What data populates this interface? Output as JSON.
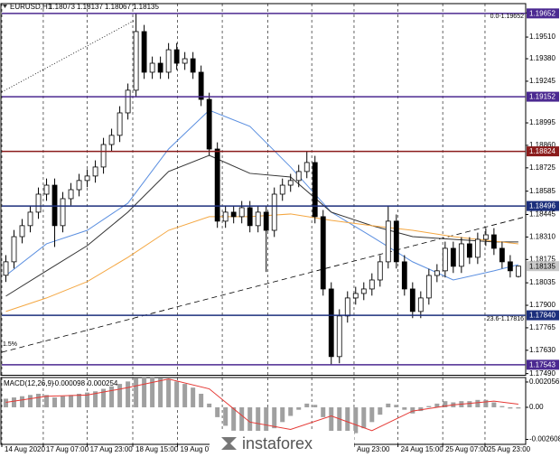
{
  "chart_data": {
    "type": "candlestick",
    "symbol": "EURUSD,H1",
    "open": [
      1.1808,
      1.18161,
      1.18312,
      1.18378,
      1.18459,
      1.18567,
      1.18621,
      1.18378,
      1.1854,
      1.18594,
      1.18649,
      1.18676,
      1.1873,
      1.18865,
      1.1892,
      1.19055,
      1.19191,
      1.19543,
      1.19299,
      1.19353,
      1.19299,
      1.19434,
      1.19353,
      1.1938,
      1.19299,
      1.19136,
      1.18838,
      1.18405,
      1.18459,
      1.18432,
      1.18486,
      1.18378,
      1.18459,
      1.1835,
      1.18567,
      1.18621,
      1.18649,
      1.18703,
      1.18757,
      1.18432,
      1.17998,
      1.17592,
      1.17836,
      1.17944,
      1.17971,
      1.17998,
      1.18052,
      1.18161,
      1.18405,
      1.18161,
      1.17998,
      1.17863,
      1.17944,
      1.18079,
      1.18107,
      1.18242,
      1.18134,
      1.18269,
      1.18188,
      1.18296,
      1.18323,
      1.18242,
      1.18161,
      1.18073
    ],
    "high": [
      1.18201,
      1.18352,
      1.18418,
      1.18499,
      1.18607,
      1.18661,
      1.18661,
      1.1858,
      1.18634,
      1.18689,
      1.18716,
      1.1877,
      1.18905,
      1.1896,
      1.19095,
      1.19231,
      1.19652,
      1.19583,
      1.19393,
      1.19393,
      1.19474,
      1.19474,
      1.1942,
      1.1942,
      1.19339,
      1.19176,
      1.18878,
      1.18499,
      1.18499,
      1.18526,
      1.18526,
      1.18499,
      1.18499,
      1.18607,
      1.18661,
      1.18689,
      1.18743,
      1.18824,
      1.18797,
      1.18472,
      1.18038,
      1.17876,
      1.17984,
      1.18011,
      1.18038,
      1.18092,
      1.18201,
      1.18496,
      1.18445,
      1.18201,
      1.18038,
      1.17984,
      1.18119,
      1.18147,
      1.18282,
      1.18282,
      1.18309,
      1.18309,
      1.18336,
      1.18363,
      1.18363,
      1.18282,
      1.18201,
      1.18137
    ],
    "low": [
      1.1804,
      1.18121,
      1.18272,
      1.18338,
      1.18419,
      1.18527,
      1.1825,
      1.18338,
      1.185,
      1.18554,
      1.18609,
      1.18636,
      1.1869,
      1.18825,
      1.1888,
      1.19015,
      1.19151,
      1.19259,
      1.19259,
      1.19259,
      1.19259,
      1.19313,
      1.19313,
      1.19259,
      1.19096,
      1.18798,
      1.18365,
      1.18365,
      1.18392,
      1.18392,
      1.18338,
      1.18338,
      1.181,
      1.1831,
      1.18527,
      1.18581,
      1.18609,
      1.18663,
      1.18392,
      1.17958,
      1.17543,
      1.17552,
      1.17796,
      1.17904,
      1.17931,
      1.17958,
      1.18012,
      1.18121,
      1.18121,
      1.17958,
      1.17823,
      1.17823,
      1.17904,
      1.18039,
      1.18067,
      1.18094,
      1.18094,
      1.18148,
      1.18148,
      1.18256,
      1.18202,
      1.18121,
      1.18067,
      1.18067
    ],
    "close": [
      1.18161,
      1.18312,
      1.18378,
      1.18459,
      1.18567,
      1.18621,
      1.18378,
      1.1854,
      1.18594,
      1.18649,
      1.18676,
      1.1873,
      1.18865,
      1.1892,
      1.19055,
      1.19191,
      1.19543,
      1.19299,
      1.19353,
      1.19299,
      1.19434,
      1.19353,
      1.1938,
      1.19299,
      1.19136,
      1.18838,
      1.18405,
      1.18459,
      1.18432,
      1.18486,
      1.18378,
      1.18459,
      1.1835,
      1.18567,
      1.18621,
      1.18649,
      1.18703,
      1.18757,
      1.18432,
      1.17998,
      1.17592,
      1.17836,
      1.17944,
      1.17971,
      1.17998,
      1.18052,
      1.18161,
      1.18405,
      1.18161,
      1.17998,
      1.17863,
      1.17944,
      1.18079,
      1.18107,
      1.18242,
      1.18134,
      1.18269,
      1.18188,
      1.18296,
      1.18323,
      1.18242,
      1.18161,
      1.18107,
      1.18135
    ],
    "candle_color": "#000000",
    "xlim": [
      -0.5,
      63.9
    ],
    "xticks": [
      {
        "value": -0.5,
        "label": "14 Aug 2020"
      },
      {
        "value": 4.6,
        "label": "17 Aug 07:00"
      },
      {
        "value": 10.0,
        "label": "17 Aug 23:00"
      },
      {
        "value": 15.6,
        "label": "18 Aug 15:00"
      },
      {
        "value": 21.1,
        "label": "19 Aug 07"
      },
      {
        "value": 26.6,
        "label": null
      },
      {
        "value": 32.2,
        "label": null
      },
      {
        "value": 37.6,
        "label": null
      },
      {
        "value": 42.8,
        "label": "Aug 23:00"
      },
      {
        "value": 48.2,
        "label": "24 Aug 15:00"
      },
      {
        "value": 53.7,
        "label": "25 Aug 07:00"
      },
      {
        "value": 58.9,
        "label": "25 Aug 23:00"
      }
    ],
    "ylim": [
      1.1748,
      1.197
    ],
    "yticks": [
      1.19655,
      {
        "value": 1.1951,
        "label": "1.19510"
      },
      {
        "value": 1.1938,
        "label": "1.19380"
      },
      1.19245,
      1.18995,
      {
        "value": 1.1886,
        "label": "1.18860"
      },
      1.18725,
      1.18585,
      1.18445,
      {
        "value": 1.1831,
        "label": "1.18310"
      },
      1.18175,
      1.18035,
      {
        "value": 1.179,
        "label": "1.17900"
      },
      1.17765,
      {
        "value": 1.1763,
        "label": "1.17630"
      },
      {
        "value": 1.1749,
        "label": "1.17490"
      }
    ],
    "grid": {
      "x": true,
      "y": false
    },
    "series": [
      {
        "color": "#5b8fe0",
        "x": [
          0,
          5,
          10,
          15,
          20,
          25,
          30,
          35,
          40,
          45,
          50,
          55,
          60,
          63
        ],
        "values": [
          1.18079,
          1.18269,
          1.1835,
          1.18513,
          1.18838,
          1.19071,
          1.18974,
          1.1873,
          1.18459,
          1.18312,
          1.18161,
          1.18052,
          1.18107,
          1.18144
        ]
      },
      {
        "color": "#333333",
        "x": [
          0,
          5,
          10,
          15,
          20,
          25,
          30,
          35,
          40,
          45,
          50,
          55,
          60,
          63
        ],
        "values": [
          1.17955,
          1.18107,
          1.18258,
          1.18459,
          1.18703,
          1.188,
          1.18692,
          1.1867,
          1.18459,
          1.18378,
          1.18312,
          1.18296,
          1.1828,
          1.1828
        ]
      },
      {
        "color": "#f4a742",
        "x": [
          0,
          5,
          10,
          15,
          20,
          25,
          30,
          35,
          40,
          45,
          50,
          55,
          60,
          63
        ],
        "values": [
          1.17863,
          1.17944,
          1.18042,
          1.18188,
          1.1835,
          1.18432,
          1.18432,
          1.18448,
          1.1841,
          1.18378,
          1.1835,
          1.18312,
          1.18285,
          1.18269
        ]
      }
    ],
    "trendlines": [
      {
        "x": [
          -0.5,
          63.9
        ],
        "values": [
          1.17618,
          1.18432
        ],
        "color": "#000000",
        "dash": "dashed"
      },
      {
        "x": [
          -0.5,
          15.9
        ],
        "values": [
          1.1918,
          1.19613
        ],
        "color": "#000000",
        "dash": "dotted"
      }
    ],
    "levels": [
      {
        "value": 1.19652,
        "color": "#4b2991"
      },
      {
        "value": 1.19152,
        "color": "#4b2991"
      },
      {
        "value": 1.18824,
        "color": "#8b1c1c"
      },
      {
        "value": 1.18496,
        "color": "#1c2f7c"
      },
      {
        "value": 1.1784,
        "label": "1.17840",
        "color": "#1c2f7c"
      },
      {
        "value": 1.17543,
        "color": "#4b2991"
      }
    ],
    "annotations": [
      "0.0-1.19652",
      "23.6-1.17816",
      "1.5%"
    ],
    "watermark": "instaforex",
    "indicator": {
      "type": "macd",
      "title": "MACD(12,26,9)",
      "histogram": [
        0.0007,
        0.0008,
        0.0009,
        0.001,
        0.0011,
        0.001,
        0.0008,
        0.0009,
        0.001,
        0.0011,
        0.0012,
        0.0013,
        0.0015,
        0.0017,
        0.0019,
        0.0021,
        0.0024,
        0.0025,
        0.0025,
        0.0024,
        0.0023,
        0.0021,
        0.0019,
        0.0016,
        0.0011,
        0.0003,
        -0.0008,
        -0.0015,
        -0.0019,
        -0.0021,
        -0.0022,
        -0.0022,
        -0.0021,
        -0.0017,
        -0.0012,
        -0.0007,
        -0.0002,
        0.0003,
        0.0002,
        -0.0008,
        -0.0022,
        -0.0025,
        -0.0024,
        -0.0021,
        -0.0017,
        -0.0012,
        -0.0006,
        0.0003,
        0.0002,
        -0.0002,
        -0.0005,
        -0.0003,
        0.0001,
        0.0003,
        0.0005,
        0.0004,
        0.0005,
        0.0005,
        0.0006,
        0.0006,
        0.0004,
        0.0001,
        -0.0001,
        -9.8e-05
      ],
      "histogram_color": "#a0a0a0",
      "signal": {
        "color": "#e53935",
        "x": [
          0,
          5,
          10,
          15,
          20,
          25,
          30,
          35,
          40,
          45,
          50,
          55,
          60,
          63
        ],
        "values": [
          0.0004,
          0.0009,
          0.001,
          0.0016,
          0.0023,
          0.0015,
          -0.0012,
          -0.0018,
          -0.0007,
          -0.0019,
          -0.0003,
          0.0002,
          0.0005,
          0.000254
        ]
      },
      "ylim": [
        -0.00301,
        0.00242
      ],
      "yticks": [
        0.002056,
        {
          "value": 0,
          "label": "0.00"
        },
        -0.002608
      ]
    }
  }
}
